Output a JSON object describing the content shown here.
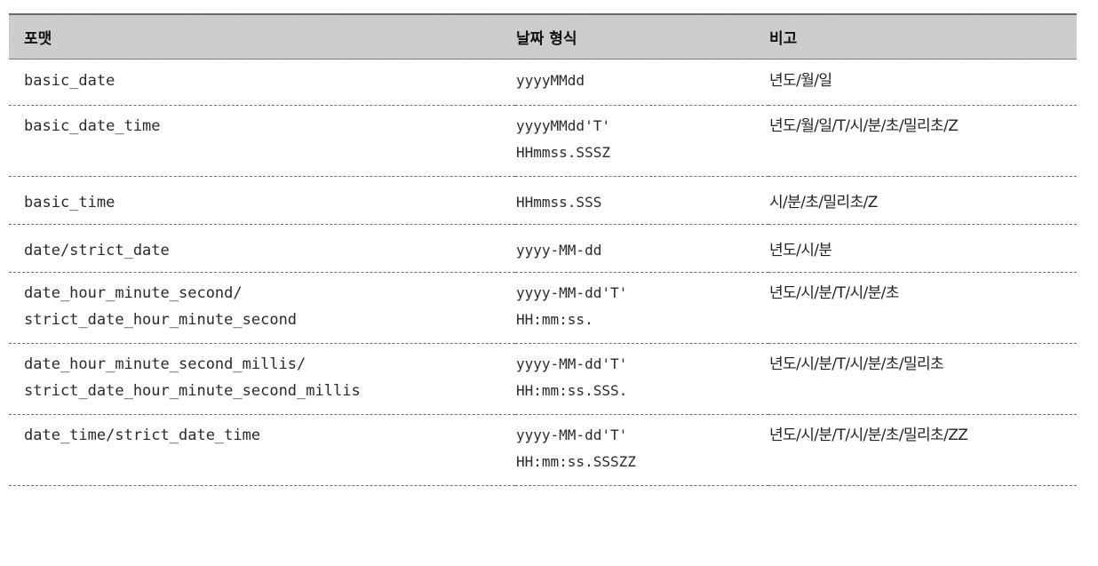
{
  "header": {
    "format": "포맷",
    "pattern": "날짜 형식",
    "note": "비고"
  },
  "rows": [
    {
      "format": [
        "basic_date"
      ],
      "pattern": [
        "yyyyMMdd"
      ],
      "note": "년도/월/일"
    },
    {
      "format": [
        "basic_date_time"
      ],
      "pattern": [
        "yyyyMMdd'T'",
        "HHmmss.SSSZ"
      ],
      "note": "년도/월/일/T/시/분/초/밀리초/Z"
    },
    {
      "format": [
        "basic_time"
      ],
      "pattern": [
        "HHmmss.SSS"
      ],
      "note": "시/분/초/밀리초/Z"
    },
    {
      "format": [
        "date/strict_date"
      ],
      "pattern": [
        "yyyy-MM-dd"
      ],
      "note": "년도/시/분"
    },
    {
      "format": [
        "date_hour_minute_second/",
        "strict_date_hour_minute_second"
      ],
      "pattern": [
        "yyyy-MM-dd'T'",
        "HH:mm:ss."
      ],
      "note": "년도/시/분/T/시/분/초"
    },
    {
      "format": [
        "date_hour_minute_second_millis/",
        "strict_date_hour_minute_second_millis"
      ],
      "pattern": [
        "yyyy-MM-dd'T'",
        "HH:mm:ss.SSS."
      ],
      "note": "년도/시/분/T/시/분/초/밀리초"
    },
    {
      "format": [
        "date_time/strict_date_time"
      ],
      "pattern": [
        "yyyy-MM-dd'T'",
        "HH:mm:ss.SSSZZ"
      ],
      "note": "년도/시/분/T/시/분/초/밀리초/ZZ"
    }
  ]
}
